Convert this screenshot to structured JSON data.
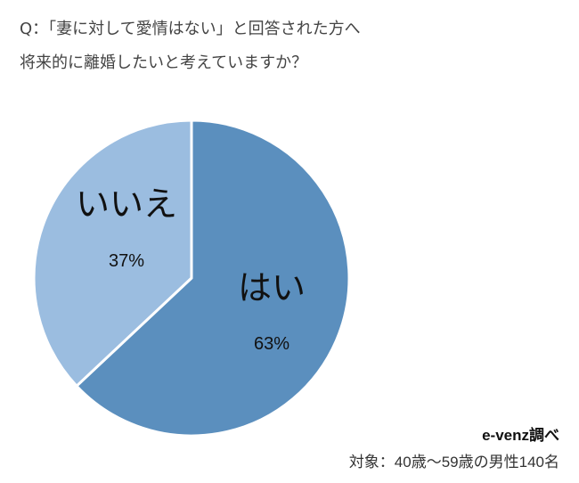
{
  "question": {
    "line1": "Q：「妻に対して愛情はない」と回答された方へ",
    "line2": "将来的に離婚したいと考えていますか？"
  },
  "chart_data": {
    "type": "pie",
    "title": "",
    "slices": [
      {
        "label": "はい",
        "value": 63,
        "value_label": "63%",
        "color": "#5b8fbe"
      },
      {
        "label": "いいえ",
        "value": 37,
        "value_label": "37%",
        "color": "#9bbde0"
      }
    ],
    "start": "12 o'clock, clockwise",
    "slice_border_color": "#ffffff"
  },
  "credits": {
    "source": "e-venz調べ",
    "subject": "対象：40歳〜59歳の男性140名"
  }
}
